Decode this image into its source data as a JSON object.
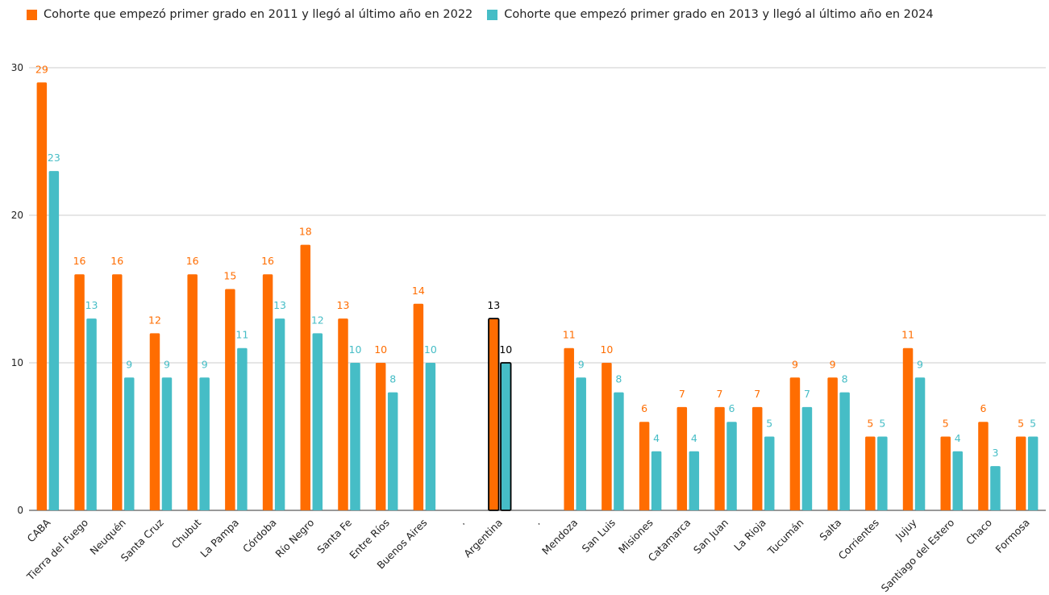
{
  "chart_data": {
    "type": "bar",
    "title": "",
    "xlabel": "",
    "ylabel": "",
    "ylim": [
      0,
      30
    ],
    "yticks": [
      0,
      10,
      20,
      30
    ],
    "grid": true,
    "legend_position": "top-left",
    "categories": [
      "CABA",
      "Tierra del Fuego",
      "Neuquén",
      "Santa Cruz",
      "Chubut",
      "La Pampa",
      "Córdoba",
      "Río Negro",
      "Santa Fe",
      "Entre Ríos",
      "Buenos Aires",
      ".",
      "Argentina",
      ".",
      "Mendoza",
      "San Luis",
      "Misiones",
      "Catamarca",
      "San Juan",
      "La Rioja",
      "Tucumán",
      "Salta",
      "Corrientes",
      "Jujuy",
      "Santiago del Estero",
      "Chaco",
      "Formosa"
    ],
    "series": [
      {
        "name": "Cohorte que empezó primer grado en 2011 y llegó al último año en 2022",
        "color": "#ff6d01",
        "values": [
          29,
          16,
          16,
          12,
          16,
          15,
          16,
          18,
          13,
          10,
          14,
          null,
          13,
          null,
          11,
          10,
          6,
          7,
          7,
          7,
          9,
          9,
          5,
          11,
          5,
          6,
          5
        ]
      },
      {
        "name": "Cohorte que empezó primer grado en 2013 y llegó al último año en 2024",
        "color": "#46bdc6",
        "values": [
          23,
          13,
          9,
          9,
          9,
          11,
          13,
          12,
          10,
          8,
          10,
          null,
          10,
          null,
          9,
          8,
          4,
          4,
          6,
          5,
          7,
          8,
          5,
          9,
          4,
          3,
          5
        ]
      }
    ],
    "highlight_category": "Argentina",
    "highlight_label_color": "#000000"
  }
}
